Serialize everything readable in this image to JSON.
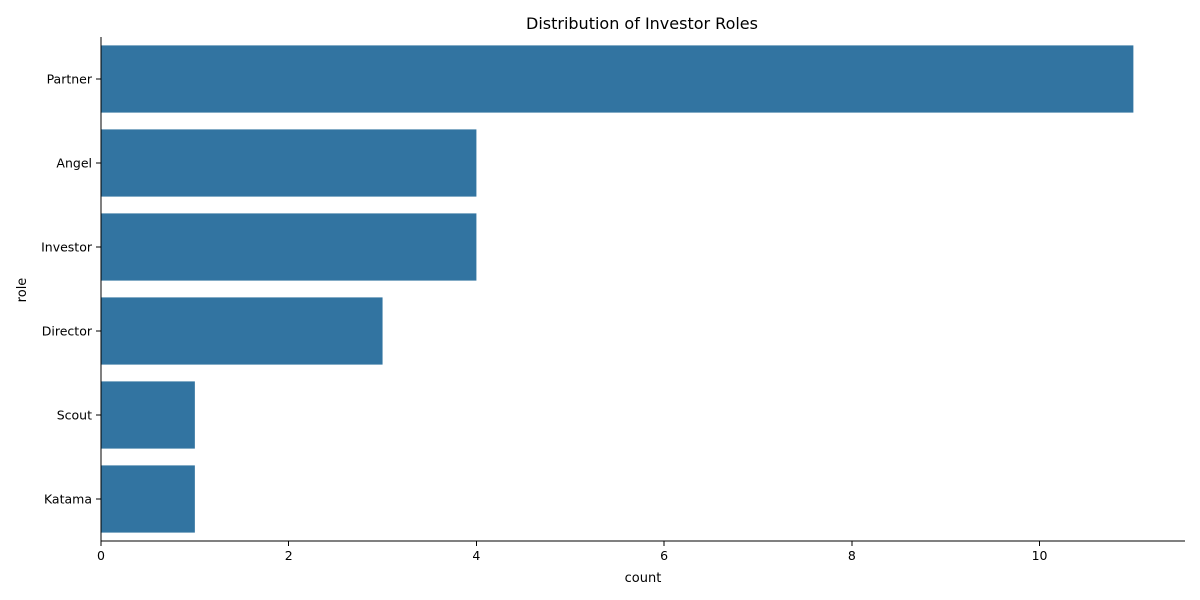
{
  "chart_data": {
    "type": "bar",
    "orientation": "horizontal",
    "title": "Distribution of Investor Roles",
    "xlabel": "count",
    "ylabel": "role",
    "categories": [
      "Partner",
      "Angel",
      "Investor",
      "Director",
      "Scout",
      "Katama"
    ],
    "values": [
      11,
      4,
      4,
      3,
      1,
      1
    ],
    "xlim": [
      0,
      11.55
    ],
    "xticks": [
      0,
      2,
      4,
      6,
      8,
      10
    ],
    "grid": false,
    "legend": "none",
    "bar_color": "#3274a1"
  }
}
